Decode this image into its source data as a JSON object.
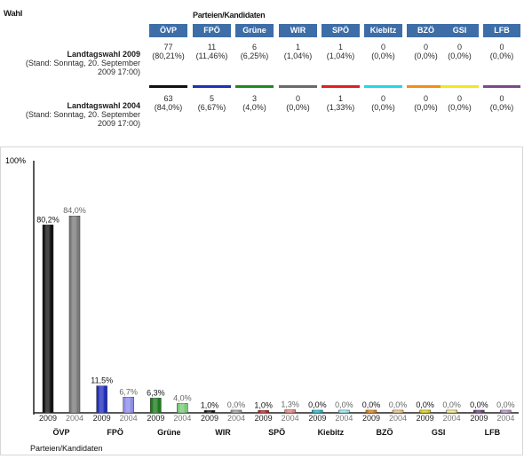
{
  "table": {
    "header_wahl": "Wahl",
    "header_parties": "Parteien/Kandidaten",
    "parties": [
      "ÖVP",
      "FPÖ",
      "Grüne",
      "WIR",
      "SPÖ",
      "Kiebitz",
      "BZÖ",
      "GSI",
      "LFB"
    ],
    "party_colors": [
      "#111111",
      "#1f2fb8",
      "#1e8a1e",
      "#6a6a6a",
      "#e02020",
      "#22d8e8",
      "#f09018",
      "#f2e81a",
      "#7a4a8a"
    ],
    "rows": [
      {
        "title": "Landtagswahl 2009",
        "subtitle_line1": "(Stand: Sonntag, 20. September",
        "subtitle_line2": "2009 17:00)",
        "counts": [
          "77",
          "11",
          "6",
          "1",
          "1",
          "0",
          "0",
          "0",
          "0"
        ],
        "percents": [
          "(80,21%)",
          "(11,46%)",
          "(6,25%)",
          "(1,04%)",
          "(1,04%)",
          "(0,0%)",
          "(0,0%)",
          "(0,0%)",
          "(0,0%)"
        ]
      },
      {
        "title": "Landtagswahl 2004",
        "subtitle_line1": "(Stand: Sonntag, 20. September",
        "subtitle_line2": "2009 17:00)",
        "counts": [
          "63",
          "5",
          "3",
          "0",
          "1",
          "0",
          "0",
          "0",
          "0"
        ],
        "percents": [
          "(84,0%)",
          "(6,67%)",
          "(4,0%)",
          "(0,0%)",
          "(1,33%)",
          "(0,0%)",
          "(0,0%)",
          "(0,0%)",
          "(0,0%)"
        ]
      }
    ]
  },
  "chart_data": {
    "type": "bar",
    "ylim": [
      0,
      100
    ],
    "y_max_label": "100%",
    "xlabel": "Parteien/Kandidaten",
    "categories": [
      "ÖVP",
      "FPÖ",
      "Grüne",
      "WIR",
      "SPÖ",
      "Kiebitz",
      "BZÖ",
      "GSI",
      "LFB"
    ],
    "series": [
      {
        "name": "2009",
        "values": [
          80.2,
          11.5,
          6.3,
          1.0,
          1.0,
          0.0,
          0.0,
          0.0,
          0.0
        ],
        "labels": [
          "80,2%",
          "11,5%",
          "6,3%",
          "1,0%",
          "1,0%",
          "0,0%",
          "0,0%",
          "0,0%",
          "0,0%"
        ]
      },
      {
        "name": "2004",
        "values": [
          84.0,
          6.7,
          4.0,
          0.0,
          1.3,
          0.0,
          0.0,
          0.0,
          0.0
        ],
        "labels": [
          "84,0%",
          "6,7%",
          "4,0%",
          "0,0%",
          "1,3%",
          "0,0%",
          "0,0%",
          "0,0%",
          "0,0%"
        ]
      }
    ],
    "colors_2009": [
      "#111111",
      "#1f2fb8",
      "#1e7a1e",
      "#111111",
      "#cc1a1a",
      "#1ab8c8",
      "#e08010",
      "#e0d010",
      "#6a3a7a"
    ],
    "colors_2004": [
      "#7a7a7a",
      "#8c8ce8",
      "#7ac87a",
      "#9a9a9a",
      "#e88080",
      "#90e8f0",
      "#f0c080",
      "#f0e880",
      "#b090c0"
    ]
  }
}
